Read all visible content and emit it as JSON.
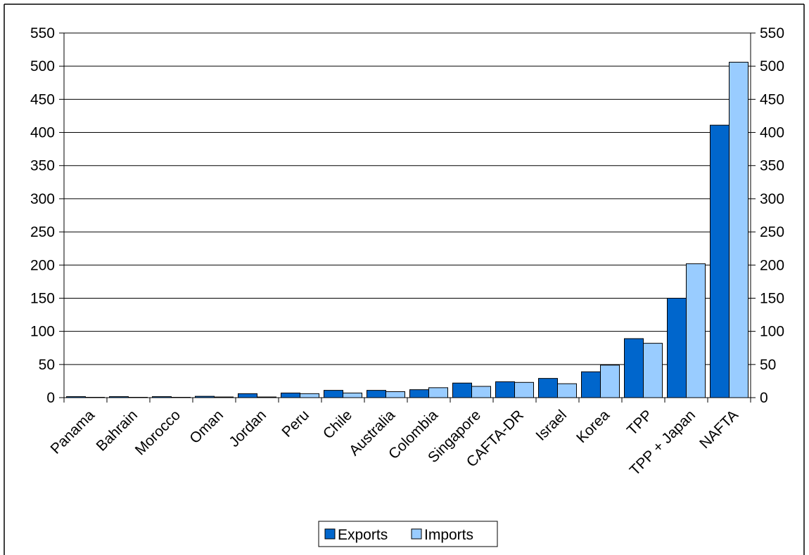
{
  "chart_data": {
    "type": "bar",
    "title": "",
    "xlabel": "",
    "ylabel": "",
    "ylim": [
      0,
      550
    ],
    "y_ticks": [
      0,
      50,
      100,
      150,
      200,
      250,
      300,
      350,
      400,
      450,
      500,
      550
    ],
    "grid": true,
    "secondary_y_axis": true,
    "legend_placement": "bottom-center",
    "categories": [
      "Panama",
      "Bahrain",
      "Morocco",
      "Oman",
      "Jordan",
      "Peru",
      "Chile",
      "Australia",
      "Colombia",
      "Singapore",
      "CAFTA-DR",
      "Israel",
      "Korea",
      "TPP",
      "TPP + Japan",
      "NAFTA"
    ],
    "series": [
      {
        "name": "Exports",
        "color": "#0066CC",
        "values": [
          1.5,
          1.5,
          1.5,
          2,
          6,
          7,
          11,
          11,
          12,
          22,
          24,
          29,
          39,
          89,
          150,
          411
        ]
      },
      {
        "name": "Imports",
        "color": "#99CCFF",
        "values": [
          0.5,
          0.5,
          0.5,
          1,
          1,
          6,
          7,
          9,
          15,
          17,
          23,
          21,
          49,
          82,
          202,
          506
        ]
      }
    ]
  }
}
